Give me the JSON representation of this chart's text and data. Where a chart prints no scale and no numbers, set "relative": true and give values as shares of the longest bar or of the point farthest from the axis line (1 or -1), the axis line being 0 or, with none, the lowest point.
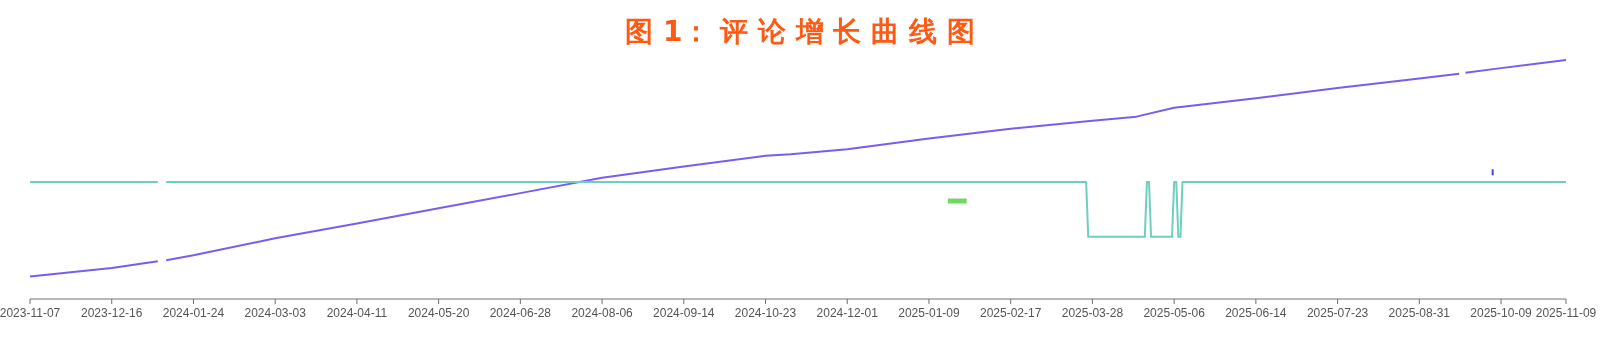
{
  "chart_data": {
    "type": "line",
    "title": "图 1： 评 论 增 长 曲 线 图",
    "relative": true,
    "xlim": [
      "2023-11-07",
      "2025-11-09"
    ],
    "xticks": [
      "2023-11-07",
      "2023-12-16",
      "2024-01-24",
      "2024-03-03",
      "2024-04-11",
      "2024-05-20",
      "2024-06-28",
      "2024-08-06",
      "2024-09-14",
      "2024-10-23",
      "2024-12-01",
      "2025-01-09",
      "2025-02-17",
      "2025-03-28",
      "2025-05-06",
      "2025-06-14",
      "2025-07-23",
      "2025-08-31",
      "2025-10-09",
      "2025-11-09"
    ],
    "series": [
      {
        "color": "#7b5cf0",
        "x": [
          "2023-11-07",
          "2023-12-16",
          "2024-01-07",
          "2024-01-09",
          "2024-01-11",
          "2024-01-24",
          "2024-03-03",
          "2024-04-11",
          "2024-05-20",
          "2024-06-28",
          "2024-08-06",
          "2024-09-14",
          "2024-10-23",
          "2024-11-04",
          "2024-12-01",
          "2025-01-09",
          "2025-02-17",
          "2025-03-28",
          "2025-04-18",
          "2025-05-06",
          "2025-06-14",
          "2025-07-23",
          "2025-08-31",
          "2025-09-19",
          "2025-09-20",
          "2025-09-22",
          "2025-10-09",
          "2025-11-09"
        ],
        "values": [
          0.094,
          0.13,
          0.158,
          null,
          0.162,
          0.183,
          0.254,
          0.316,
          0.38,
          0.443,
          0.507,
          0.554,
          0.599,
          0.606,
          0.627,
          0.672,
          0.712,
          0.746,
          0.763,
          0.8,
          0.84,
          0.883,
          0.923,
          0.942,
          null,
          0.947,
          0.966,
          1.0
        ]
      },
      {
        "color": "#6fcfbf",
        "x": [
          "2023-11-07",
          "2024-01-07",
          "2024-01-09",
          "2024-01-11",
          "2025-03-25",
          "2025-03-26",
          "2025-04-22",
          "2025-04-23",
          "2025-04-24",
          "2025-04-25",
          "2025-05-05",
          "2025-05-06",
          "2025-05-07",
          "2025-05-08",
          "2025-05-09",
          "2025-05-10",
          "2025-11-09"
        ],
        "values": [
          0.49,
          0.49,
          null,
          0.49,
          0.49,
          0.26,
          0.26,
          0.49,
          0.49,
          0.26,
          0.26,
          0.49,
          0.49,
          0.26,
          0.26,
          0.49,
          0.49
        ]
      },
      {
        "color": "#6fd860",
        "x": [
          "2025-01-18",
          "2025-01-27"
        ],
        "values": [
          0.41,
          0.41
        ]
      },
      {
        "type": "scatter",
        "color": "#4848d0",
        "x": [
          "2025-10-05"
        ],
        "values": [
          0.53
        ]
      }
    ]
  }
}
